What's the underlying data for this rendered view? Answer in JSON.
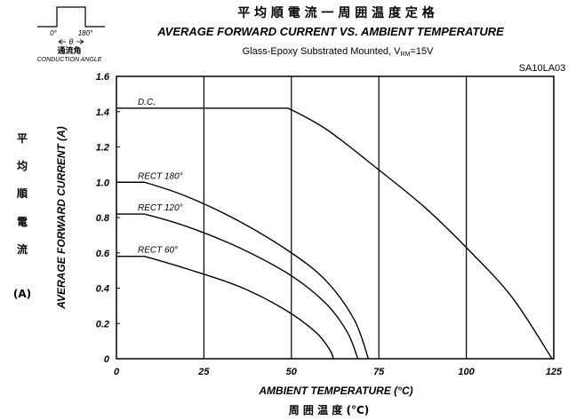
{
  "title_cn": "平 均 順 電 流 一 周 囲 温 度 定 格",
  "title_en": "AVERAGE FORWARD CURRENT VS. AMBIENT TEMPERATURE",
  "subtitle": {
    "prefix": "Glass-Epoxy Substrated Mounted, V",
    "sub": "RM",
    "suffix": "=15V"
  },
  "part_number": "SA10LA03",
  "inset": {
    "tick_left": "0°",
    "tick_right": "180°",
    "theta": "θ",
    "label_cn": "通流角",
    "label_en": "CONDUCTION ANGLE"
  },
  "ylabel_cn": [
    "平",
    "均",
    "順",
    "電",
    "流"
  ],
  "ylabel_cn_unit": "(A)",
  "xlabel_cn": "周 囲 温 度  (°C)",
  "chart_data": {
    "type": "line",
    "title": "AVERAGE FORWARD CURRENT VS. AMBIENT TEMPERATURE",
    "xlabel": "AMBIENT TEMPERATURE (°C)",
    "ylabel": "AVERAGE FORWARD CURRENT (A)",
    "xlim": [
      0,
      125
    ],
    "ylim": [
      0,
      1.6
    ],
    "x_ticks": [
      "0",
      "25",
      "50",
      "75",
      "100",
      "125"
    ],
    "y_ticks": [
      "0",
      "0.2",
      "0.4",
      "0.6",
      "0.8",
      "1.0",
      "1.2",
      "1.4",
      "1.6"
    ],
    "grid": "vertical",
    "series": [
      {
        "name": "D.C.",
        "points": [
          [
            0,
            1.42
          ],
          [
            49,
            1.42
          ],
          [
            60,
            1.3
          ],
          [
            75,
            1.07
          ],
          [
            88,
            0.86
          ],
          [
            100,
            0.63
          ],
          [
            113,
            0.35
          ],
          [
            124.5,
            0
          ]
        ]
      },
      {
        "name": "RECT 180°",
        "points": [
          [
            0,
            1.0
          ],
          [
            8,
            1.0
          ],
          [
            20,
            0.92
          ],
          [
            35,
            0.78
          ],
          [
            50,
            0.6
          ],
          [
            60,
            0.44
          ],
          [
            68,
            0.22
          ],
          [
            72,
            0
          ]
        ]
      },
      {
        "name": "RECT 120°",
        "points": [
          [
            0,
            0.82
          ],
          [
            8,
            0.82
          ],
          [
            20,
            0.75
          ],
          [
            35,
            0.63
          ],
          [
            50,
            0.47
          ],
          [
            60,
            0.31
          ],
          [
            66,
            0.15
          ],
          [
            69,
            0
          ]
        ]
      },
      {
        "name": "RECT 60°",
        "points": [
          [
            0,
            0.58
          ],
          [
            8,
            0.58
          ],
          [
            20,
            0.51
          ],
          [
            35,
            0.41
          ],
          [
            48,
            0.28
          ],
          [
            57,
            0.15
          ],
          [
            61,
            0.05
          ],
          [
            62,
            0
          ]
        ]
      }
    ]
  }
}
